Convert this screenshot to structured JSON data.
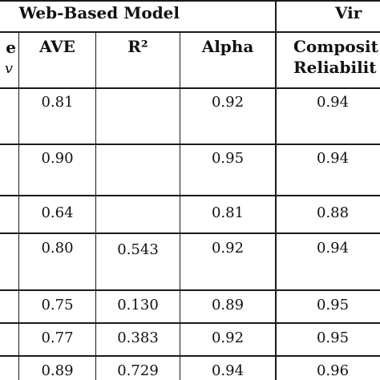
{
  "table": {
    "group_headers": {
      "left": "Web-Based Model",
      "right": "Vir"
    },
    "column_headers": {
      "partial_left_line1": "e",
      "partial_left_line2": "v",
      "ave": "AVE",
      "r2": "R²",
      "alpha": "Alpha",
      "composite_line1": "Composit",
      "composite_line2": "Reliabilit"
    },
    "rows": [
      {
        "ave": "0.81",
        "r2": "",
        "alpha": "0.92",
        "composite": "0.94"
      },
      {
        "ave": "0.90",
        "r2": "",
        "alpha": "0.95",
        "composite": "0.94"
      },
      {
        "ave": "0.64",
        "r2": "",
        "alpha": "0.81",
        "composite": "0.88"
      },
      {
        "ave": "0.80",
        "r2": "0.543",
        "alpha": "0.92",
        "composite": "0.94"
      },
      {
        "ave": "0.75",
        "r2": "0.130",
        "alpha": "0.89",
        "composite": "0.95"
      },
      {
        "ave": "0.77",
        "r2": "0.383",
        "alpha": "0.92",
        "composite": "0.95"
      },
      {
        "ave": "0.89",
        "r2": "0.729",
        "alpha": "0.94",
        "composite": "0.96"
      }
    ]
  }
}
